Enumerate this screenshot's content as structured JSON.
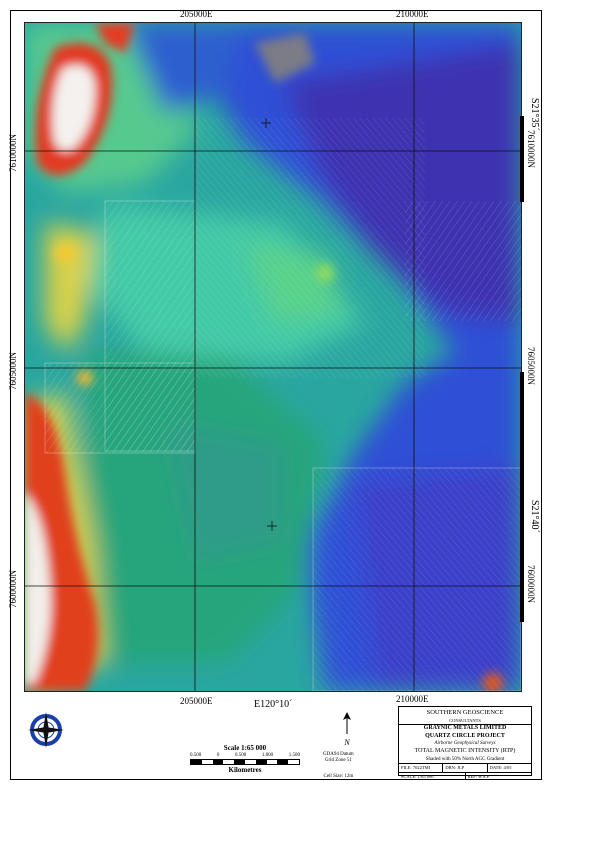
{
  "map": {
    "title": "TOTAL MAGNETIC INTENSITY (RTP)",
    "subtitle": "Shaded with 50% North AGC Gradient",
    "grid": {
      "top_eastings": [
        "205000E",
        "210000E"
      ],
      "bottom_eastings": [
        "205000E",
        "210000E"
      ],
      "left_northings": [
        "7610000N",
        "7605000N",
        "7600000N"
      ],
      "right_northings": [
        "7610000N",
        "7605000N",
        "7600000N"
      ],
      "longitude_label": "E120°10´",
      "latitude_labels": [
        "S21°35´",
        "S21°40´"
      ]
    },
    "colors": {
      "high": "#e03020",
      "mid_high": "#f0d040",
      "mid": "#3fc7a5",
      "low": "#2a55d8",
      "very_low": "#3a1f9e"
    }
  },
  "title_block": {
    "company": "SOUTHERN GEOSCIENCE",
    "company_sub": "CONSULTANTS",
    "client": "GRAYNIC METALS LIMITED",
    "project": "QUARTZ CIRCLE PROJECT",
    "survey": "Airborne Geophysical Surveys",
    "product": "TOTAL MAGNETIC INTENSITY (RTP)",
    "shading": "Shaded with 50% North AGC Gradient",
    "row1": [
      "FILE: 7022TMI",
      "DRN: JLP",
      "DATE: 4/05"
    ],
    "row2": [
      "SCALE: 1:65 000",
      "REF: W.S.P."
    ]
  },
  "scale_bar": {
    "title": "Scale 1:65 000",
    "ticks": [
      "0.500",
      "0",
      "0.500",
      "1.000",
      "1.500"
    ],
    "units": "Kilometres"
  },
  "north_arrow": {
    "label": "N"
  },
  "datum": {
    "lines": [
      "GDA94 Datum",
      "Grid Zone 51"
    ],
    "cell_size": "Cell Size: 12m"
  },
  "logo": {
    "name": "southern-geoscience-logo"
  }
}
